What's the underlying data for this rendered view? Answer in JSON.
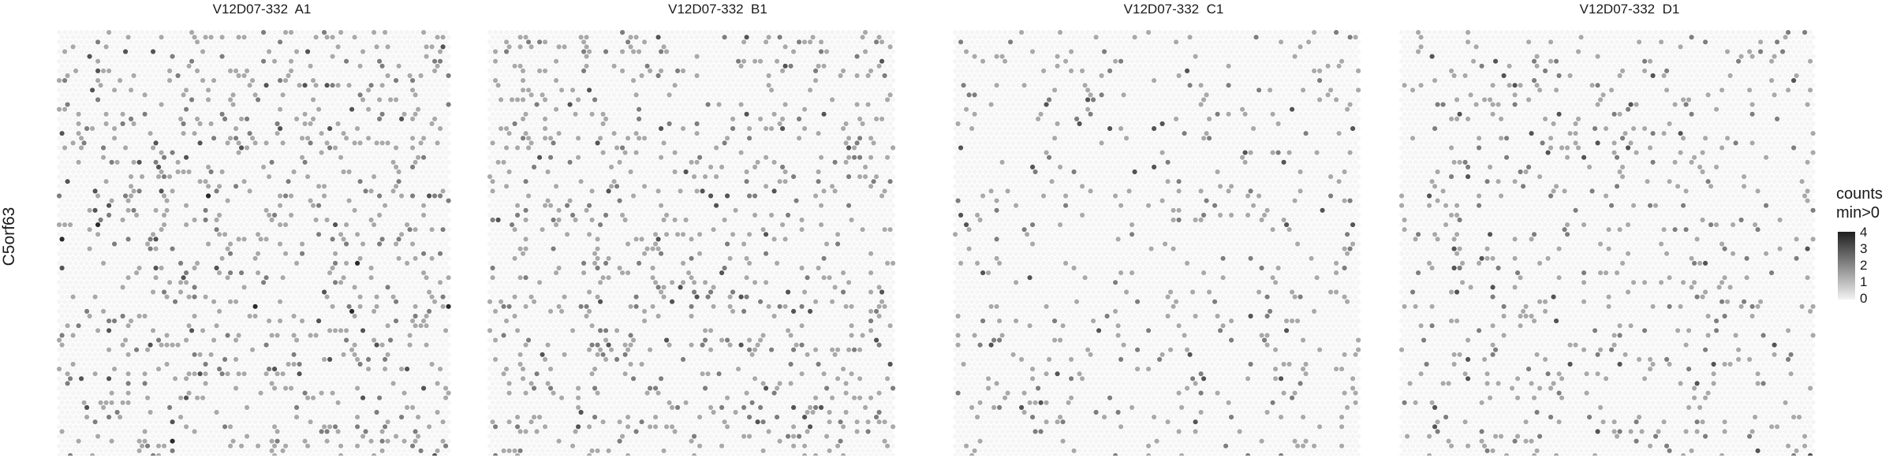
{
  "figure": {
    "ylabel": "C5orf63",
    "panel_titles": [
      "V12D07-332  A1",
      "V12D07-332  B1",
      "V12D07-332  C1",
      "V12D07-332  D1"
    ]
  },
  "legend": {
    "title_line1": "counts",
    "title_line2": "min>0",
    "ticks": [
      "4",
      "3",
      "2",
      "1",
      "0"
    ],
    "color_low": "#f3f3f3",
    "color_high": "#1f1f1f"
  },
  "chart_data": [
    {
      "type": "heatmap",
      "title": "V12D07-332  A1",
      "ylabel": "C5orf63",
      "value_label": "counts min>0",
      "value_range": [
        0,
        4
      ],
      "background_value": 0,
      "nonzero_spot_density": 0.13,
      "max_value": 4
    },
    {
      "type": "heatmap",
      "title": "V12D07-332  B1",
      "ylabel": "C5orf63",
      "value_label": "counts min>0",
      "value_range": [
        0,
        4
      ],
      "background_value": 0,
      "nonzero_spot_density": 0.12,
      "max_value": 3
    },
    {
      "type": "heatmap",
      "title": "V12D07-332  C1",
      "ylabel": "C5orf63",
      "value_label": "counts min>0",
      "value_range": [
        0,
        4
      ],
      "background_value": 0,
      "nonzero_spot_density": 0.07,
      "max_value": 3
    },
    {
      "type": "heatmap",
      "title": "V12D07-332  D1",
      "ylabel": "C5orf63",
      "value_label": "counts min>0",
      "value_range": [
        0,
        4
      ],
      "background_value": 0,
      "nonzero_spot_density": 0.09,
      "max_value": 3
    }
  ]
}
